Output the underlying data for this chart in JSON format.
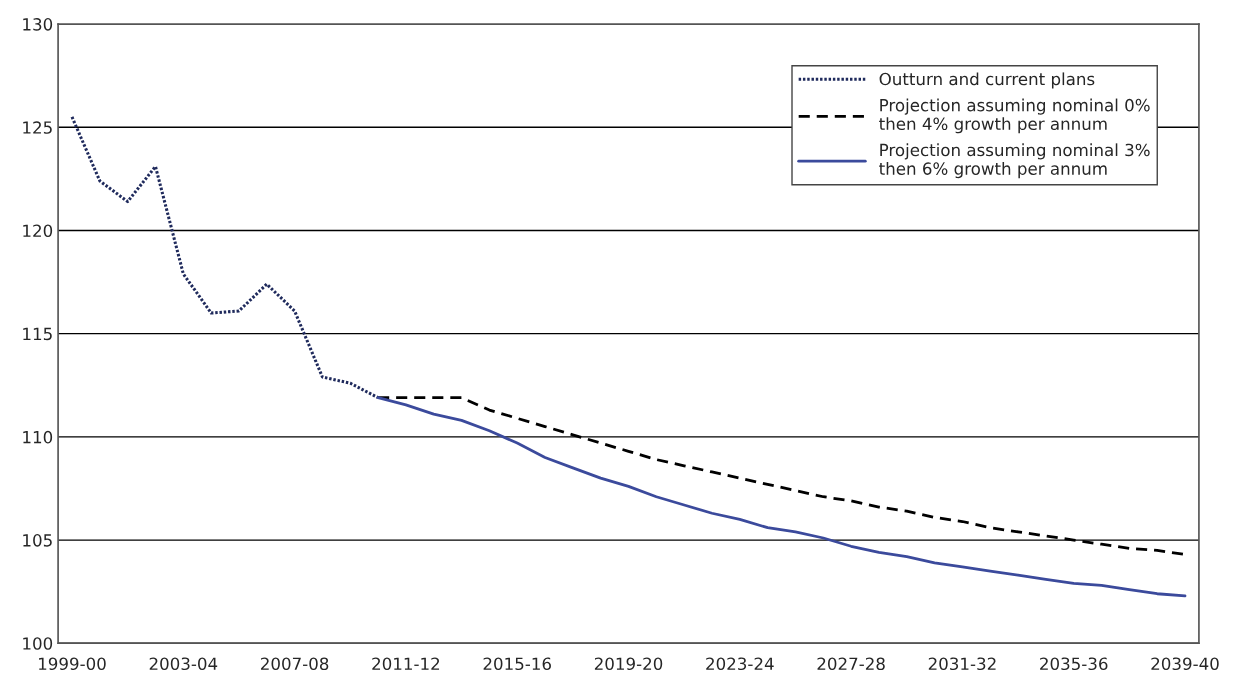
{
  "chart_data": {
    "type": "line",
    "categories": [
      "1999-00",
      null,
      null,
      null,
      "2003-04",
      null,
      null,
      null,
      "2007-08",
      null,
      null,
      null,
      "2011-12",
      null,
      null,
      null,
      "2015-16",
      null,
      null,
      null,
      "2019-20",
      null,
      null,
      null,
      "2023-24",
      null,
      null,
      null,
      "2027-28",
      null,
      null,
      null,
      "2031-32",
      null,
      null,
      null,
      "2035-36",
      null,
      null,
      null,
      "2039-40"
    ],
    "series": [
      {
        "name": "Outturn and current plans",
        "color": "#1f2a5c",
        "line_style": "dotted",
        "values": [
          125.5,
          122.4,
          121.4,
          123.1,
          117.9,
          116.0,
          116.1,
          117.4,
          116.1,
          112.9,
          112.6,
          111.9,
          null,
          null,
          null,
          null,
          null,
          null,
          null,
          null,
          null,
          null,
          null,
          null,
          null,
          null,
          null,
          null,
          null,
          null,
          null,
          null,
          null,
          null,
          null,
          null,
          null,
          null,
          null,
          null,
          null
        ]
      },
      {
        "name": "Projection assuming nominal 0%\nthen 4% growth per annum",
        "color": "#000000",
        "line_style": "dashed",
        "values": [
          null,
          null,
          null,
          null,
          null,
          null,
          null,
          null,
          null,
          null,
          null,
          111.9,
          111.9,
          111.9,
          111.9,
          111.3,
          110.9,
          110.5,
          110.1,
          109.7,
          109.3,
          108.9,
          108.6,
          108.3,
          108.0,
          107.7,
          107.4,
          107.1,
          106.9,
          106.6,
          106.4,
          106.1,
          105.9,
          105.6,
          105.4,
          105.2,
          105.0,
          104.8,
          104.6,
          104.5,
          104.3
        ]
      },
      {
        "name": "Projection assuming nominal 3%\nthen 6% growth per annum",
        "color": "#3b4a9c",
        "line_style": "solid",
        "values": [
          null,
          null,
          null,
          null,
          null,
          null,
          null,
          null,
          null,
          null,
          null,
          111.9,
          111.55,
          111.1,
          110.8,
          110.3,
          109.7,
          109.0,
          108.5,
          108.0,
          107.6,
          107.1,
          106.7,
          106.3,
          106.0,
          105.6,
          105.4,
          105.1,
          104.7,
          104.4,
          104.2,
          103.9,
          103.7,
          103.5,
          103.3,
          103.1,
          102.9,
          102.8,
          102.6,
          102.4,
          102.3
        ]
      }
    ],
    "ylim": [
      100,
      130
    ],
    "yticks": [
      100,
      105,
      110,
      115,
      120,
      125,
      130
    ],
    "grid": "y",
    "legend": "top right"
  }
}
